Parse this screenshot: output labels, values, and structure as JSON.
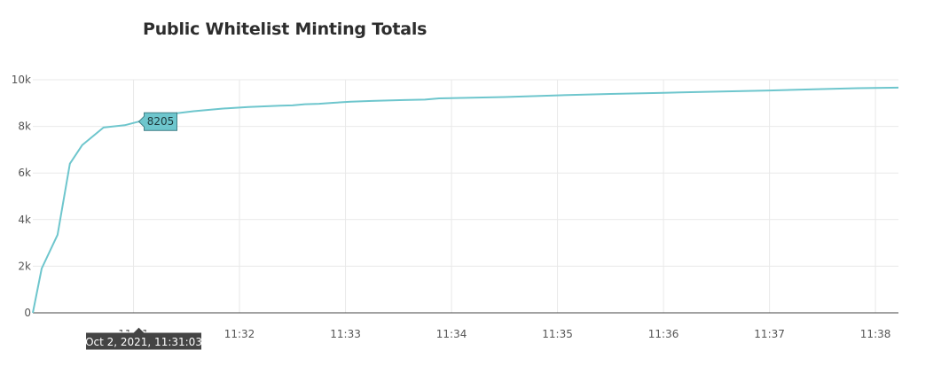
{
  "chart_data": {
    "type": "line",
    "title": "Public Whitelist Minting Totals",
    "xlabel": "",
    "ylabel": "",
    "x_type": "time",
    "x_range": [
      "2021-10-02 11:30:03",
      "2021-10-02 11:38:13"
    ],
    "ylim": [
      0,
      10000
    ],
    "grid": true,
    "legend": "none",
    "x_ticks": [
      {
        "value": "2021-10-02 11:31:00",
        "label": "11:31"
      },
      {
        "value": "2021-10-02 11:32:00",
        "label": "11:32"
      },
      {
        "value": "2021-10-02 11:33:00",
        "label": "11:33"
      },
      {
        "value": "2021-10-02 11:34:00",
        "label": "11:34"
      },
      {
        "value": "2021-10-02 11:35:00",
        "label": "11:35"
      },
      {
        "value": "2021-10-02 11:36:00",
        "label": "11:36"
      },
      {
        "value": "2021-10-02 11:37:00",
        "label": "11:37"
      },
      {
        "value": "2021-10-02 11:38:00",
        "label": "11:38"
      }
    ],
    "y_ticks": [
      {
        "value": 0,
        "label": "0"
      },
      {
        "value": 2000,
        "label": "2k"
      },
      {
        "value": 4000,
        "label": "4k"
      },
      {
        "value": 6000,
        "label": "6k"
      },
      {
        "value": 8000,
        "label": "8k"
      },
      {
        "value": 10000,
        "label": "10k"
      }
    ],
    "line_color": "#6ec6cd",
    "series": [
      {
        "x": [
          "2021-10-02 11:30:03",
          "2021-10-02 11:30:08",
          "2021-10-02 11:30:17",
          "2021-10-02 11:30:24",
          "2021-10-02 11:30:31",
          "2021-10-02 11:30:43",
          "2021-10-02 11:30:55",
          "2021-10-02 11:31:03",
          "2021-10-02 11:31:09",
          "2021-10-02 11:31:20",
          "2021-10-02 11:31:34",
          "2021-10-02 11:31:50",
          "2021-10-02 11:32:05",
          "2021-10-02 11:32:23",
          "2021-10-02 11:32:30",
          "2021-10-02 11:32:37",
          "2021-10-02 11:32:45",
          "2021-10-02 11:32:53",
          "2021-10-02 11:33:03",
          "2021-10-02 11:33:15",
          "2021-10-02 11:33:33",
          "2021-10-02 11:33:45",
          "2021-10-02 11:33:53",
          "2021-10-02 11:34:30",
          "2021-10-02 11:35:00",
          "2021-10-02 11:35:30",
          "2021-10-02 11:36:00",
          "2021-10-02 11:36:30",
          "2021-10-02 11:37:00",
          "2021-10-02 11:37:30",
          "2021-10-02 11:37:50",
          "2021-10-02 11:38:13"
        ],
        "y": [
          0,
          1900,
          3350,
          6400,
          7200,
          7950,
          8050,
          8205,
          8380,
          8520,
          8650,
          8760,
          8830,
          8890,
          8900,
          8950,
          8970,
          9010,
          9060,
          9090,
          9130,
          9150,
          9200,
          9260,
          9330,
          9390,
          9440,
          9490,
          9540,
          9600,
          9640,
          9660
        ]
      }
    ],
    "hover": {
      "value_label": "8205",
      "time_label": "Oct 2, 2021, 11:31:03",
      "x": "2021-10-02 11:31:03",
      "y": 8205
    }
  }
}
